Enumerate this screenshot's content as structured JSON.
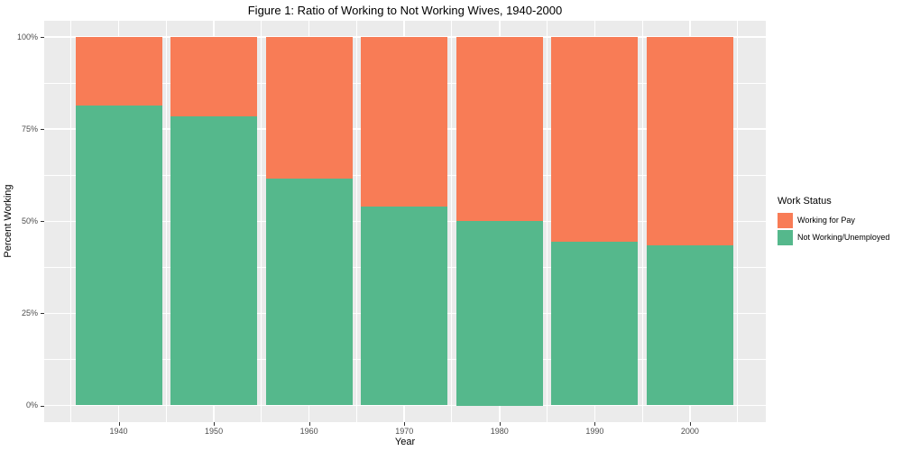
{
  "figure": {
    "background": "#ffffff"
  },
  "chart_data": {
    "type": "bar",
    "stacked": true,
    "orientation": "vertical",
    "title": "Figure 1: Ratio of Working to Not Working Wives, 1940-2000",
    "xlabel": "Year",
    "ylabel": "Percent Working",
    "categories": [
      "1940",
      "1950",
      "1960",
      "1970",
      "1980",
      "1990",
      "2000"
    ],
    "series": [
      {
        "name": "Not Working/Unemployed",
        "color": "#55B88C",
        "values": [
          81.5,
          78.5,
          61.5,
          54,
          50,
          44.5,
          43.5
        ]
      },
      {
        "name": "Working for Pay",
        "color": "#F87C56",
        "values": [
          18.5,
          21.5,
          38.5,
          46,
          50,
          55.5,
          56.5
        ]
      }
    ],
    "ylim": [
      0,
      100
    ],
    "ytick_values": [
      0,
      25,
      50,
      75,
      100
    ],
    "ytick_labels": [
      "0%",
      "25%",
      "50%",
      "75%",
      "100%"
    ],
    "ytick_minor_values": [
      12.5,
      37.5,
      62.5,
      87.5
    ],
    "grid": true,
    "panel_background": "#EBEBEB",
    "grid_color": "#FFFFFF",
    "legend": {
      "title": "Work Status",
      "position": "right",
      "items": [
        {
          "label": "Working for Pay",
          "color": "#F87C56"
        },
        {
          "label": "Not Working/Unemployed",
          "color": "#55B88C"
        }
      ]
    }
  }
}
